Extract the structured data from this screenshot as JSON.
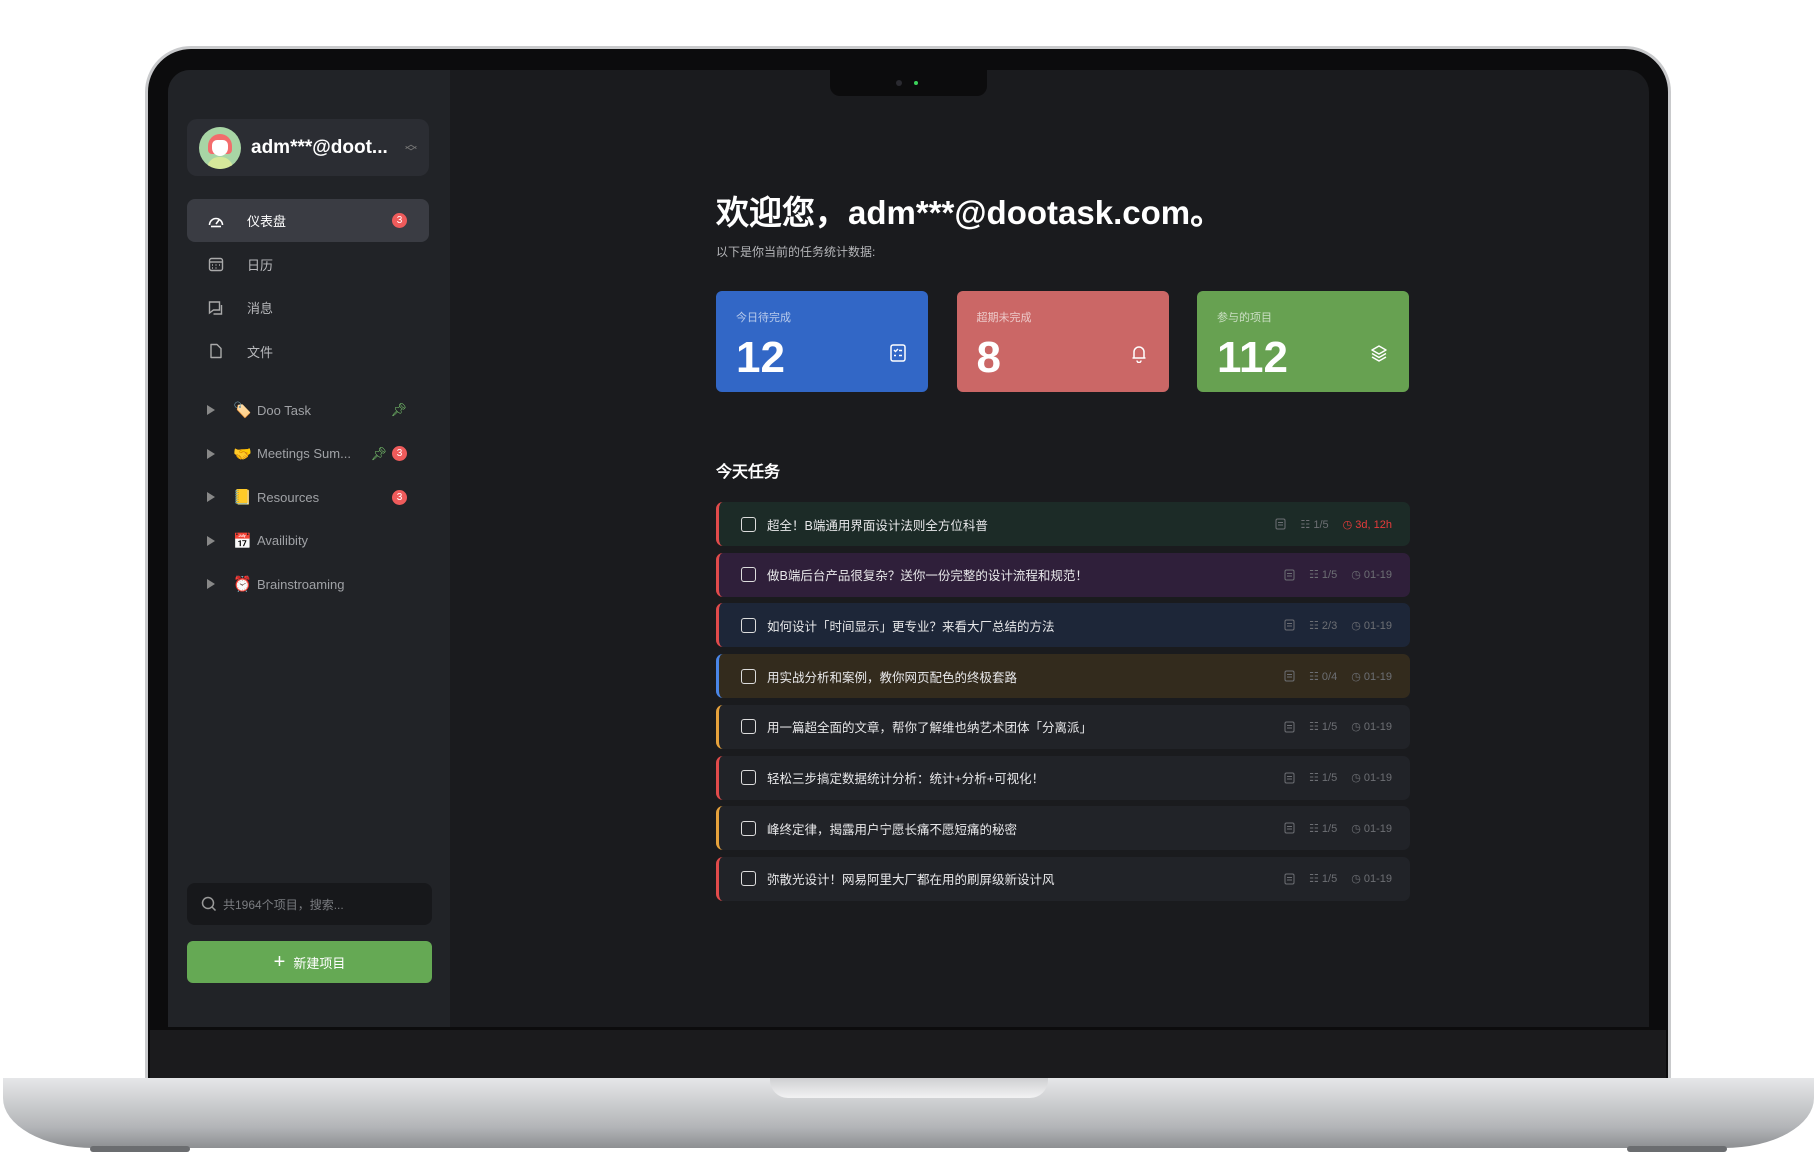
{
  "user": {
    "name": "adm***@doot..."
  },
  "nav": [
    {
      "label": "仪表盘",
      "icon": "dashboard-icon",
      "badge": "3",
      "active": true
    },
    {
      "label": "日历",
      "icon": "calendar-icon"
    },
    {
      "label": "消息",
      "icon": "message-icon"
    },
    {
      "label": "文件",
      "icon": "file-icon"
    }
  ],
  "projects": [
    {
      "emoji": "🏷️",
      "label": "Doo Task",
      "pinned": true
    },
    {
      "emoji": "🤝",
      "label": "Meetings Sum...",
      "pinned": true,
      "badge": "3"
    },
    {
      "emoji": "📒",
      "label": "Resources",
      "badge": "3"
    },
    {
      "emoji": "📅",
      "label": "Availibity"
    },
    {
      "emoji": "⏰",
      "label": "Brainstroaming"
    }
  ],
  "search": {
    "placeholder": "共1964个项目，搜索..."
  },
  "new_project": "新建项目",
  "welcome": "欢迎您，adm***@dootask.com。",
  "subtitle": "以下是你当前的任务统计数据:",
  "cards": [
    {
      "label": "今日待完成",
      "value": "12",
      "color": "#3267c6",
      "icon": "checklist-icon"
    },
    {
      "label": "超期未完成",
      "value": "8",
      "color": "#cb6766",
      "icon": "bell-icon"
    },
    {
      "label": "参与的项目",
      "value": "112",
      "color": "#67a151",
      "icon": "layers-icon"
    }
  ],
  "today_title": "今天任务",
  "tasks": [
    {
      "title": "超全！B端通用界面设计法则全方位科普",
      "sub": "1/5",
      "time": "3d, 12h",
      "overdue": true,
      "bg": "#1c2b27",
      "bar": "#e14b4b"
    },
    {
      "title": "做B端后台产品很复杂？送你一份完整的设计流程和规范！",
      "sub": "1/5",
      "time": "01-19",
      "bg": "#2f1f3a",
      "bar": "#e14b4b"
    },
    {
      "title": "如何设计「时间显示」更专业？来看大厂总结的方法",
      "sub": "2/3",
      "time": "01-19",
      "bg": "#1d2638",
      "bar": "#e14b4b"
    },
    {
      "title": "用实战分析和案例，教你网页配色的终极套路",
      "sub": "0/4",
      "time": "01-19",
      "bg": "#332b1d",
      "bar": "#4a86e8"
    },
    {
      "title": "用一篇超全面的文章，帮你了解维也纳艺术团体「分离派」",
      "sub": "1/5",
      "time": "01-19",
      "bg": "#212328",
      "bar": "#e6a23c"
    },
    {
      "title": "轻松三步搞定数据统计分析：统计+分析+可视化！",
      "sub": "1/5",
      "time": "01-19",
      "bg": "#212328",
      "bar": "#e14b4b"
    },
    {
      "title": "峰终定律，揭露用户宁愿长痛不愿短痛的秘密",
      "sub": "1/5",
      "time": "01-19",
      "bg": "#212328",
      "bar": "#e6a23c"
    },
    {
      "title": "弥散光设计！网易阿里大厂都在用的刷屏级新设计风",
      "sub": "1/5",
      "time": "01-19",
      "bg": "#212328",
      "bar": "#e14b4b"
    }
  ]
}
